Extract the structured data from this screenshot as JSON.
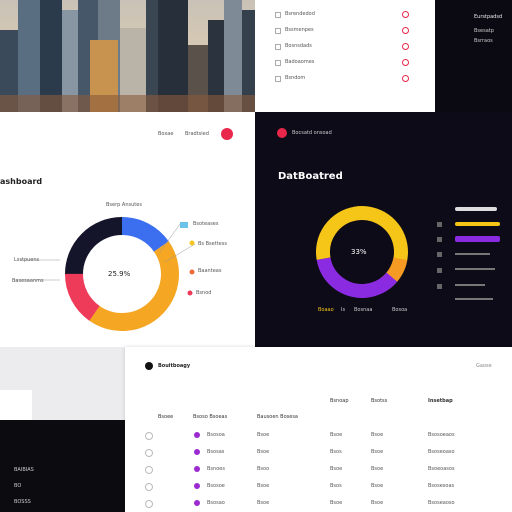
{
  "top_list": {
    "rows": [
      "Bsrendedod",
      "Bssmenpes",
      "Bosnsdads",
      "Badoaomes",
      "Bsndom"
    ]
  },
  "top_right": {
    "title": "Eurstpadsd",
    "lines": [
      "Bsesatp",
      "Bsrraos"
    ]
  },
  "left_dashboard": {
    "title": "ashboard",
    "nav": [
      "Boxae",
      "Bradtsied"
    ],
    "center": "25.9%",
    "labels": [
      "Bserp Ansutes",
      "Bsoteases",
      "Bs Bsettess",
      "Baanteas",
      "Bsnod",
      "Lsstpuens",
      "Basesaanms"
    ]
  },
  "dark_dashboard": {
    "header": "Bocsatd onsoad",
    "title": "DatBoatred",
    "center": "33%",
    "legend": [
      "Boaao",
      "Is",
      "Bosnaa",
      "Bosoa"
    ]
  },
  "table": {
    "title": "Bouitboagy",
    "header_right": "Gaose",
    "columns": [
      "Bsoee",
      "Bsoso Bsoeas",
      "Bausoen Bosesa",
      "Bsnoap",
      "Bsotss",
      "Insetbap"
    ],
    "rows": [
      [
        "Bsosoa",
        "Bsoe",
        "Bsoe",
        "Bsoe",
        "Bsosoeaos"
      ],
      [
        "Bsosas",
        "Bsoe",
        "Bsos",
        "Bsoe",
        "Bsoseoaso"
      ],
      [
        "Bsnoes",
        "Bsoo",
        "Bsoe",
        "Bsoe",
        "Bsoeoasos"
      ],
      [
        "Bsosoe",
        "Bsoe",
        "Bsos",
        "Bsoe",
        "Bsosesoas"
      ],
      [
        "Bsosao",
        "Bsoe",
        "Bsoe",
        "Bsoe",
        "Bsoseaoso"
      ]
    ]
  },
  "sidebar": {
    "items": [
      "BAIBIAS",
      "BO",
      "BOSSS"
    ]
  }
}
